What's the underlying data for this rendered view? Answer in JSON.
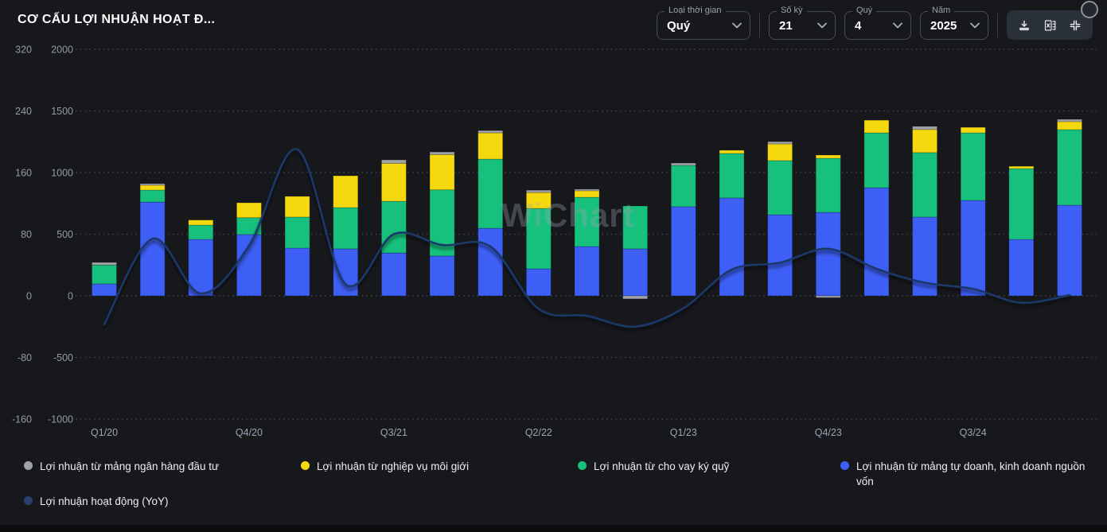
{
  "header": {
    "title": "CƠ CẤU LỢI NHUẬN HOẠT Đ..."
  },
  "controls": {
    "selects": [
      {
        "label": "Loại thời gian",
        "value": "Quý"
      },
      {
        "label": "Số kỳ",
        "value": "21"
      },
      {
        "label": "Quý",
        "value": "4"
      },
      {
        "label": "Năm",
        "value": "2025"
      }
    ],
    "action_icons": [
      "download-icon",
      "excel-export-icon",
      "collapse-icon"
    ]
  },
  "watermark": {
    "prefix": "W",
    "i": "i",
    "suffix": "Chart"
  },
  "chart_data": {
    "type": "bar",
    "subtype": "stacked-bars-with-smooth-line-overlay-dual-y-axis",
    "grid": "horizontal-dotted",
    "legend_position": "bottom",
    "categories": [
      "Q1/20",
      "Q2/20",
      "Q3/20",
      "Q4/20",
      "Q1/21",
      "Q2/21",
      "Q3/21",
      "Q4/21",
      "Q1/22",
      "Q2/22",
      "Q3/22",
      "Q4/22",
      "Q1/23",
      "Q2/23",
      "Q3/23",
      "Q4/23",
      "Q1/24",
      "Q2/24",
      "Q3/24",
      "Q4/24",
      "Q1/25"
    ],
    "x_axis_tick_labels": [
      "Q1/20",
      "Q4/20",
      "Q3/21",
      "Q2/22",
      "Q1/23",
      "Q4/23",
      "Q3/24"
    ],
    "x_axis_tick_every": 3,
    "y_axis_percent": {
      "ticks": [
        320,
        240,
        160,
        80,
        0,
        -80,
        -160
      ],
      "min": -160,
      "max": 320
    },
    "y_axis_value": {
      "ticks": [
        2000,
        1500,
        1000,
        500,
        0,
        -500,
        -1000
      ],
      "min": -1000,
      "max": 2000
    },
    "stacked_series_bottom_to_top": [
      {
        "name": "Lợi nhuận từ mảng tự doanh, kinh doanh nguồn vốn",
        "color": "#3d5ff5",
        "values": [
          97,
          761,
          458,
          497,
          387,
          381,
          348,
          323,
          548,
          219,
          400,
          381,
          723,
          794,
          658,
          677,
          877,
          639,
          774,
          458,
          735
        ]
      },
      {
        "name": "Lợi nhuận từ cho vay ký quỹ",
        "color": "#17c07c",
        "values": [
          153,
          97,
          116,
          137,
          252,
          335,
          419,
          537,
          561,
          490,
          400,
          348,
          335,
          361,
          439,
          439,
          445,
          523,
          548,
          574,
          613
        ]
      },
      {
        "name": "Lợi nhuận từ nghiệp vụ môi giới",
        "color": "#f6d80e",
        "values": [
          0,
          39,
          41,
          121,
          168,
          258,
          308,
          286,
          213,
          129,
          52,
          0,
          0,
          26,
          135,
          26,
          103,
          187,
          45,
          19,
          65
        ]
      },
      {
        "name": "Lợi nhuận từ mảng ngân hàng đầu tư",
        "color": "#9fa3a8",
        "values": [
          21,
          13,
          0,
          0,
          0,
          0,
          28,
          21,
          19,
          19,
          13,
          -25,
          19,
          0,
          19,
          -15,
          0,
          26,
          0,
          0,
          19
        ]
      }
    ],
    "line_series": {
      "name": "Lợi nhuận hoạt động (YoY)",
      "color": "#1d3869",
      "axis": "percent",
      "values": [
        -37,
        74,
        3,
        65,
        190,
        15,
        80,
        66,
        64,
        -17,
        -26,
        -40,
        -16,
        34,
        43,
        61,
        35,
        17,
        9,
        -9,
        1
      ]
    }
  },
  "legend": {
    "items": [
      {
        "label": "Lợi nhuận từ mảng ngân hàng đầu tư",
        "color": "#9fa3a8"
      },
      {
        "label": "Lợi nhuận từ nghiệp vụ môi giới",
        "color": "#f6d80e"
      },
      {
        "label": "Lợi nhuận từ cho vay ký quỹ",
        "color": "#17c07c"
      },
      {
        "label": "Lợi nhuận từ mảng tự doanh, kinh doanh nguồn vốn",
        "color": "#3d5ff5"
      },
      {
        "label": "Lợi nhuận hoạt động (YoY)",
        "color": "#2c3f6f"
      }
    ]
  }
}
